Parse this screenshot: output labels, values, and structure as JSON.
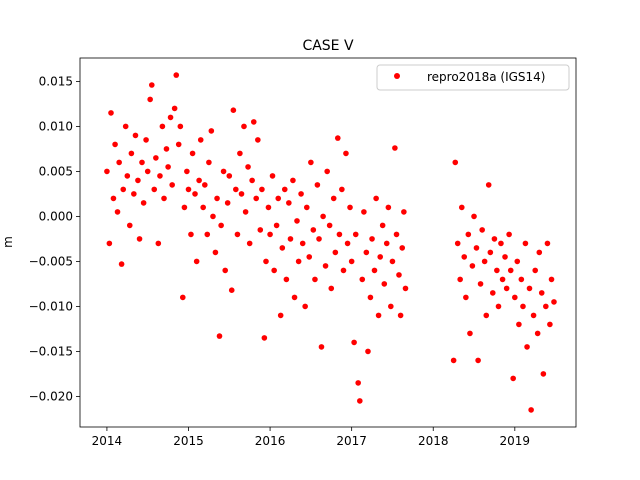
{
  "chart_data": {
    "type": "scatter",
    "title": "CASE V",
    "xlabel": "",
    "ylabel": "m",
    "xlim": [
      2013.67,
      2019.75
    ],
    "ylim": [
      -0.0234,
      0.0176
    ],
    "xticks": [
      2014,
      2015,
      2016,
      2017,
      2018,
      2019
    ],
    "xtick_labels": [
      "2014",
      "2015",
      "2016",
      "2017",
      "2018",
      "2019"
    ],
    "yticks": [
      0.015,
      0.01,
      0.005,
      0.0,
      -0.005,
      -0.01,
      -0.015,
      -0.02
    ],
    "ytick_labels": [
      "0.015",
      "0.010",
      "0.005",
      "0.000",
      "−0.005",
      "−0.010",
      "−0.015",
      "−0.020"
    ],
    "grid": false,
    "legend_position": "top-right",
    "series": [
      {
        "name": "repro2018a (IGS14)",
        "color": "#ff0000",
        "marker": "circle",
        "x": [
          2014.0,
          2014.03,
          2014.05,
          2014.08,
          2014.1,
          2014.13,
          2014.15,
          2014.18,
          2014.2,
          2014.23,
          2014.25,
          2014.28,
          2014.3,
          2014.33,
          2014.35,
          2014.38,
          2014.4,
          2014.43,
          2014.45,
          2014.48,
          2014.5,
          2014.53,
          2014.55,
          2014.58,
          2014.6,
          2014.63,
          2014.65,
          2014.68,
          2014.7,
          2014.73,
          2014.75,
          2014.78,
          2014.8,
          2014.83,
          2014.85,
          2014.88,
          2014.9,
          2014.93,
          2014.95,
          2014.98,
          2015.0,
          2015.03,
          2015.05,
          2015.08,
          2015.1,
          2015.13,
          2015.15,
          2015.18,
          2015.2,
          2015.23,
          2015.25,
          2015.28,
          2015.3,
          2015.33,
          2015.35,
          2015.38,
          2015.4,
          2015.43,
          2015.45,
          2015.48,
          2015.5,
          2015.53,
          2015.55,
          2015.58,
          2015.6,
          2015.63,
          2015.65,
          2015.68,
          2015.7,
          2015.73,
          2015.75,
          2015.78,
          2015.8,
          2015.83,
          2015.85,
          2015.88,
          2015.9,
          2015.93,
          2015.95,
          2015.98,
          2016.0,
          2016.03,
          2016.05,
          2016.08,
          2016.1,
          2016.13,
          2016.15,
          2016.18,
          2016.2,
          2016.23,
          2016.25,
          2016.28,
          2016.3,
          2016.33,
          2016.35,
          2016.38,
          2016.4,
          2016.43,
          2016.45,
          2016.48,
          2016.5,
          2016.53,
          2016.55,
          2016.58,
          2016.6,
          2016.63,
          2016.65,
          2016.68,
          2016.7,
          2016.73,
          2016.75,
          2016.78,
          2016.8,
          2016.83,
          2016.85,
          2016.88,
          2016.9,
          2016.93,
          2016.95,
          2016.98,
          2017.0,
          2017.03,
          2017.05,
          2017.08,
          2017.1,
          2017.13,
          2017.15,
          2017.18,
          2017.2,
          2017.23,
          2017.25,
          2017.28,
          2017.3,
          2017.33,
          2017.35,
          2017.38,
          2017.4,
          2017.43,
          2017.45,
          2017.48,
          2017.5,
          2017.53,
          2017.55,
          2017.58,
          2017.6,
          2017.62,
          2017.64,
          2017.66,
          2018.25,
          2018.27,
          2018.3,
          2018.33,
          2018.35,
          2018.38,
          2018.4,
          2018.43,
          2018.45,
          2018.48,
          2018.5,
          2018.53,
          2018.55,
          2018.58,
          2018.6,
          2018.63,
          2018.65,
          2018.68,
          2018.7,
          2018.73,
          2018.75,
          2018.78,
          2018.8,
          2018.83,
          2018.85,
          2018.88,
          2018.9,
          2018.93,
          2018.95,
          2018.98,
          2019.0,
          2019.03,
          2019.05,
          2019.08,
          2019.1,
          2019.13,
          2019.15,
          2019.18,
          2019.2,
          2019.23,
          2019.25,
          2019.28,
          2019.3,
          2019.33,
          2019.35,
          2019.38,
          2019.4,
          2019.43,
          2019.45,
          2019.48
        ],
        "y": [
          0.005,
          -0.003,
          0.0115,
          0.002,
          0.008,
          0.0005,
          0.006,
          -0.0053,
          0.003,
          0.01,
          0.0045,
          -0.001,
          0.007,
          0.0025,
          0.009,
          0.004,
          -0.0025,
          0.006,
          0.0015,
          0.0085,
          0.005,
          0.013,
          0.0146,
          0.003,
          0.0065,
          -0.003,
          0.0045,
          0.01,
          0.002,
          0.0075,
          0.0055,
          0.011,
          0.0035,
          0.012,
          0.0157,
          0.008,
          0.01,
          -0.009,
          0.001,
          0.005,
          0.003,
          -0.002,
          0.007,
          0.0025,
          -0.005,
          0.004,
          0.0085,
          0.001,
          0.0035,
          -0.002,
          0.006,
          0.0095,
          0.0,
          -0.004,
          0.002,
          -0.0133,
          -0.001,
          0.005,
          -0.006,
          0.0015,
          0.0045,
          -0.0082,
          0.0118,
          0.003,
          -0.002,
          0.007,
          0.0025,
          0.01,
          0.0005,
          0.0055,
          -0.003,
          0.004,
          0.0105,
          0.002,
          0.0085,
          -0.0015,
          0.003,
          -0.0135,
          -0.005,
          0.001,
          -0.002,
          0.0045,
          -0.006,
          -0.001,
          0.002,
          -0.011,
          -0.0035,
          0.003,
          -0.007,
          0.0015,
          -0.0025,
          0.004,
          -0.009,
          -0.0005,
          -0.005,
          0.0025,
          -0.003,
          -0.01,
          0.001,
          -0.0045,
          0.006,
          -0.0015,
          -0.007,
          0.0035,
          -0.0025,
          -0.0145,
          0.0,
          -0.0055,
          0.005,
          -0.001,
          -0.008,
          0.002,
          -0.004,
          0.0087,
          -0.002,
          0.003,
          -0.006,
          0.007,
          -0.003,
          0.001,
          -0.005,
          -0.014,
          -0.002,
          -0.0185,
          -0.0205,
          -0.007,
          0.0005,
          -0.004,
          -0.015,
          -0.009,
          -0.0025,
          -0.006,
          0.002,
          -0.011,
          -0.0045,
          -0.001,
          -0.0075,
          -0.003,
          0.001,
          -0.01,
          -0.005,
          0.0076,
          -0.002,
          -0.0065,
          -0.011,
          -0.0035,
          0.0005,
          -0.008,
          -0.016,
          0.006,
          -0.003,
          -0.007,
          0.001,
          -0.0045,
          -0.009,
          -0.002,
          -0.013,
          -0.0055,
          0.0,
          -0.0035,
          -0.016,
          -0.0075,
          -0.0015,
          -0.005,
          -0.011,
          0.0035,
          -0.004,
          -0.0085,
          -0.0025,
          -0.006,
          -0.01,
          -0.003,
          -0.007,
          -0.0045,
          -0.008,
          -0.002,
          -0.006,
          -0.018,
          -0.009,
          -0.005,
          -0.012,
          -0.007,
          -0.01,
          -0.003,
          -0.0145,
          -0.008,
          -0.0215,
          -0.011,
          -0.006,
          -0.013,
          -0.004,
          -0.0085,
          -0.0175,
          -0.01,
          -0.003,
          -0.012,
          -0.007,
          -0.0095
        ]
      }
    ]
  }
}
